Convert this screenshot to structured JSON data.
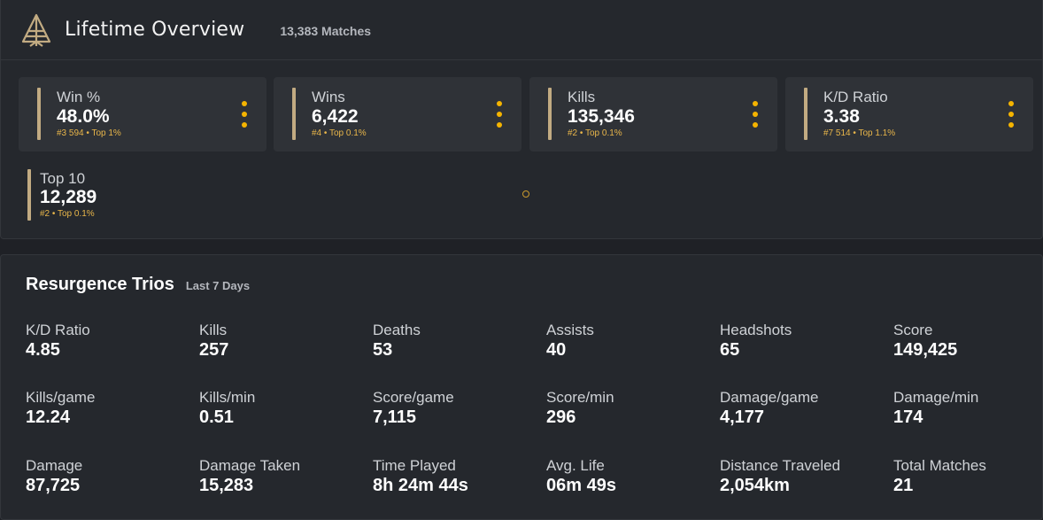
{
  "overview": {
    "title": "Lifetime Overview",
    "matches": "13,383 Matches",
    "cards": [
      {
        "label": "Win %",
        "value": "48.0%",
        "rank": "#3 594 • Top 1%"
      },
      {
        "label": "Wins",
        "value": "6,422",
        "rank": "#4 • Top 0.1%"
      },
      {
        "label": "Kills",
        "value": "135,346",
        "rank": "#2 • Top 0.1%"
      },
      {
        "label": "K/D Ratio",
        "value": "3.38",
        "rank": "#7 514 • Top 1.1%"
      }
    ],
    "top10": {
      "label": "Top 10",
      "value": "12,289",
      "rank": "#2 • Top 0.1%"
    }
  },
  "mode": {
    "title": "Resurgence Trios",
    "period": "Last 7 Days",
    "stats": [
      {
        "label": "K/D Ratio",
        "value": "4.85"
      },
      {
        "label": "Kills",
        "value": "257"
      },
      {
        "label": "Deaths",
        "value": "53"
      },
      {
        "label": "Assists",
        "value": "40"
      },
      {
        "label": "Headshots",
        "value": "65"
      },
      {
        "label": "Score",
        "value": "149,425"
      },
      {
        "label": "Kills/game",
        "value": "12.24"
      },
      {
        "label": "Kills/min",
        "value": "0.51"
      },
      {
        "label": "Score/game",
        "value": "7,115"
      },
      {
        "label": "Score/min",
        "value": "296"
      },
      {
        "label": "Damage/game",
        "value": "4,177"
      },
      {
        "label": "Damage/min",
        "value": "174"
      },
      {
        "label": "Damage",
        "value": "87,725"
      },
      {
        "label": "Damage Taken",
        "value": "15,283"
      },
      {
        "label": "Time Played",
        "value": "8h 24m 44s"
      },
      {
        "label": "Avg. Life",
        "value": "06m 49s"
      },
      {
        "label": "Distance Traveled",
        "value": "2,054km"
      },
      {
        "label": "Total Matches",
        "value": "21"
      }
    ]
  },
  "colors": {
    "accent": "#f5b400",
    "bar": "#c2ab82",
    "rank": "#e9b64a"
  }
}
